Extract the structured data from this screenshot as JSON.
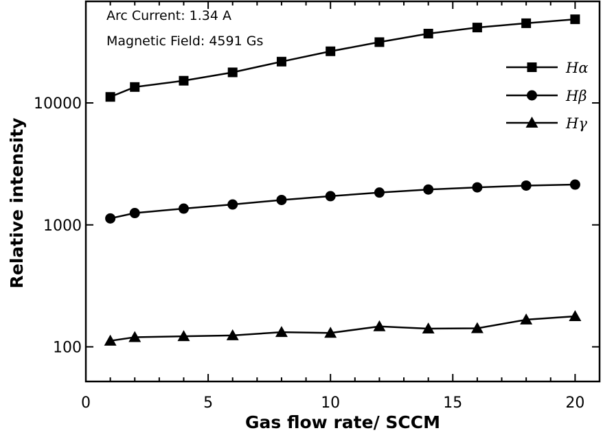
{
  "chart_data": {
    "type": "line",
    "title": "",
    "xlabel": "Gas flow rate/ SCCM",
    "ylabel": "Relative intensity",
    "xlim": [
      0,
      21
    ],
    "ylim": [
      52,
      68000
    ],
    "y_scale": "log",
    "x_ticks": [
      0,
      5,
      10,
      15,
      20
    ],
    "y_ticks": [
      100,
      1000,
      10000
    ],
    "grid": false,
    "legend_position": "top-right",
    "annotations": [
      "Arc Current: 1.34 A",
      "Magnetic Field: 4591 Gs"
    ],
    "x": [
      1,
      2,
      4,
      6,
      8,
      10,
      12,
      14,
      16,
      18,
      20
    ],
    "series": [
      {
        "name": "Hα",
        "marker": "square",
        "values": [
          11200,
          13500,
          15200,
          17800,
          21800,
          26500,
          31500,
          37000,
          41500,
          45000,
          48500
        ]
      },
      {
        "name": "Hβ",
        "marker": "circle",
        "values": [
          1130,
          1250,
          1360,
          1470,
          1600,
          1720,
          1840,
          1950,
          2030,
          2100,
          2140
        ]
      },
      {
        "name": "Hγ",
        "marker": "triangle",
        "values": [
          112,
          120,
          122,
          124,
          132,
          130,
          147,
          141,
          142,
          167,
          178
        ]
      }
    ]
  }
}
